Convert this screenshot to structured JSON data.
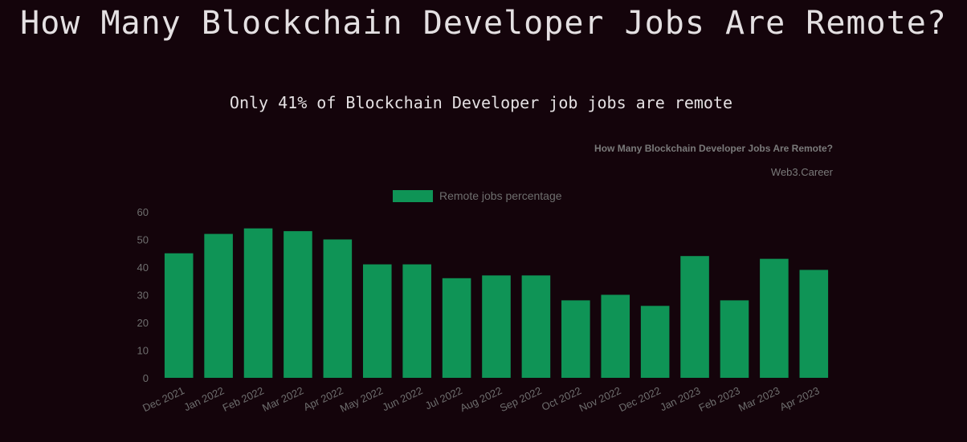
{
  "page": {
    "title": "How Many Blockchain Developer Jobs Are Remote?",
    "subtitle": "Only 41% of Blockchain Developer job jobs are remote"
  },
  "colors": {
    "background": "#14040b",
    "bar": "#0f9456",
    "text": "#e4e0e2",
    "chart_text": "#6e6e6e"
  },
  "chart_data": {
    "type": "bar",
    "title": "How Many Blockchain Developer Jobs Are Remote?",
    "source": "Web3.Career",
    "legend": "top-center",
    "grid": false,
    "categories": [
      "Dec 2021",
      "Jan 2022",
      "Feb 2022",
      "Mar 2022",
      "Apr 2022",
      "May 2022",
      "Jun 2022",
      "Jul 2022",
      "Aug 2022",
      "Sep 2022",
      "Oct 2022",
      "Nov 2022",
      "Dec 2022",
      "Jan 2023",
      "Feb 2023",
      "Mar 2023",
      "Apr 2023"
    ],
    "series": [
      {
        "name": "Remote jobs percentage",
        "values": [
          45,
          52,
          54,
          53,
          50,
          41,
          41,
          36,
          37,
          37,
          28,
          30,
          26,
          44,
          28,
          43,
          39
        ]
      }
    ],
    "ylim": [
      0,
      60
    ],
    "yticks": [
      0,
      10,
      20,
      30,
      40,
      50,
      60
    ]
  }
}
